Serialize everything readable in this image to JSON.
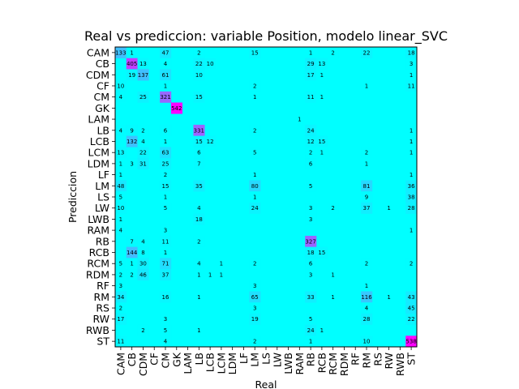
{
  "chart_data": {
    "type": "heatmap",
    "title": "Real vs prediccion: variable Position, modelo linear_SVC",
    "xlabel": "Real",
    "ylabel": "Prediccion",
    "categories": [
      "CAM",
      "CB",
      "CDM",
      "CF",
      "CM",
      "GK",
      "LAM",
      "LB",
      "LCB",
      "LCM",
      "LDM",
      "LF",
      "LM",
      "LS",
      "LW",
      "LWB",
      "RAM",
      "RB",
      "RCB",
      "RCM",
      "RDM",
      "RF",
      "RM",
      "RS",
      "RW",
      "RWB",
      "ST"
    ],
    "colormap": {
      "low": "#00ffff",
      "high": "#ff00ff"
    },
    "vmax": 542,
    "cells": [
      [
        0,
        0,
        133
      ],
      [
        0,
        1,
        1
      ],
      [
        0,
        4,
        47
      ],
      [
        0,
        7,
        2
      ],
      [
        0,
        12,
        15
      ],
      [
        0,
        17,
        1
      ],
      [
        0,
        19,
        2
      ],
      [
        0,
        22,
        22
      ],
      [
        0,
        26,
        18
      ],
      [
        1,
        1,
        405
      ],
      [
        1,
        2,
        13
      ],
      [
        1,
        4,
        4
      ],
      [
        1,
        7,
        22
      ],
      [
        1,
        8,
        10
      ],
      [
        1,
        17,
        29
      ],
      [
        1,
        18,
        13
      ],
      [
        1,
        26,
        3
      ],
      [
        2,
        1,
        19
      ],
      [
        2,
        2,
        137
      ],
      [
        2,
        4,
        61
      ],
      [
        2,
        7,
        10
      ],
      [
        2,
        17,
        17
      ],
      [
        2,
        18,
        1
      ],
      [
        2,
        26,
        1
      ],
      [
        3,
        0,
        10
      ],
      [
        3,
        4,
        1
      ],
      [
        3,
        12,
        2
      ],
      [
        3,
        22,
        1
      ],
      [
        3,
        26,
        11
      ],
      [
        4,
        0,
        4
      ],
      [
        4,
        2,
        25
      ],
      [
        4,
        4,
        321
      ],
      [
        4,
        7,
        15
      ],
      [
        4,
        12,
        1
      ],
      [
        4,
        17,
        11
      ],
      [
        4,
        18,
        1
      ],
      [
        5,
        5,
        542
      ],
      [
        6,
        16,
        1
      ],
      [
        7,
        0,
        4
      ],
      [
        7,
        1,
        9
      ],
      [
        7,
        2,
        2
      ],
      [
        7,
        4,
        6
      ],
      [
        7,
        7,
        331
      ],
      [
        7,
        12,
        2
      ],
      [
        7,
        17,
        24
      ],
      [
        7,
        26,
        1
      ],
      [
        8,
        1,
        132
      ],
      [
        8,
        2,
        4
      ],
      [
        8,
        4,
        1
      ],
      [
        8,
        7,
        15
      ],
      [
        8,
        8,
        12
      ],
      [
        8,
        17,
        12
      ],
      [
        8,
        18,
        15
      ],
      [
        8,
        26,
        1
      ],
      [
        9,
        0,
        13
      ],
      [
        9,
        2,
        22
      ],
      [
        9,
        4,
        63
      ],
      [
        9,
        7,
        6
      ],
      [
        9,
        12,
        5
      ],
      [
        9,
        17,
        2
      ],
      [
        9,
        18,
        1
      ],
      [
        9,
        22,
        2
      ],
      [
        9,
        26,
        1
      ],
      [
        10,
        0,
        1
      ],
      [
        10,
        1,
        3
      ],
      [
        10,
        2,
        31
      ],
      [
        10,
        4,
        25
      ],
      [
        10,
        7,
        7
      ],
      [
        10,
        17,
        6
      ],
      [
        10,
        22,
        1
      ],
      [
        11,
        0,
        1
      ],
      [
        11,
        4,
        2
      ],
      [
        11,
        12,
        1
      ],
      [
        11,
        26,
        1
      ],
      [
        12,
        0,
        48
      ],
      [
        12,
        4,
        15
      ],
      [
        12,
        7,
        35
      ],
      [
        12,
        12,
        80
      ],
      [
        12,
        17,
        5
      ],
      [
        12,
        22,
        81
      ],
      [
        12,
        26,
        36
      ],
      [
        13,
        0,
        5
      ],
      [
        13,
        4,
        1
      ],
      [
        13,
        12,
        1
      ],
      [
        13,
        22,
        9
      ],
      [
        13,
        26,
        38
      ],
      [
        14,
        0,
        10
      ],
      [
        14,
        4,
        5
      ],
      [
        14,
        7,
        4
      ],
      [
        14,
        12,
        24
      ],
      [
        14,
        17,
        3
      ],
      [
        14,
        19,
        2
      ],
      [
        14,
        22,
        37
      ],
      [
        14,
        24,
        1
      ],
      [
        14,
        26,
        28
      ],
      [
        15,
        0,
        1
      ],
      [
        15,
        7,
        18
      ],
      [
        15,
        17,
        3
      ],
      [
        16,
        0,
        4
      ],
      [
        16,
        4,
        3
      ],
      [
        16,
        26,
        1
      ],
      [
        17,
        1,
        7
      ],
      [
        17,
        2,
        4
      ],
      [
        17,
        4,
        11
      ],
      [
        17,
        7,
        2
      ],
      [
        17,
        17,
        327
      ],
      [
        18,
        1,
        144
      ],
      [
        18,
        2,
        8
      ],
      [
        18,
        4,
        1
      ],
      [
        18,
        17,
        18
      ],
      [
        18,
        18,
        15
      ],
      [
        19,
        0,
        5
      ],
      [
        19,
        1,
        1
      ],
      [
        19,
        2,
        30
      ],
      [
        19,
        4,
        71
      ],
      [
        19,
        7,
        4
      ],
      [
        19,
        9,
        1
      ],
      [
        19,
        12,
        2
      ],
      [
        19,
        17,
        6
      ],
      [
        19,
        22,
        2
      ],
      [
        19,
        26,
        2
      ],
      [
        20,
        0,
        2
      ],
      [
        20,
        1,
        2
      ],
      [
        20,
        2,
        46
      ],
      [
        20,
        4,
        37
      ],
      [
        20,
        7,
        1
      ],
      [
        20,
        8,
        1
      ],
      [
        20,
        9,
        1
      ],
      [
        20,
        17,
        3
      ],
      [
        20,
        19,
        1
      ],
      [
        21,
        0,
        3
      ],
      [
        21,
        12,
        3
      ],
      [
        21,
        22,
        1
      ],
      [
        22,
        0,
        34
      ],
      [
        22,
        4,
        16
      ],
      [
        22,
        7,
        1
      ],
      [
        22,
        12,
        65
      ],
      [
        22,
        17,
        33
      ],
      [
        22,
        19,
        1
      ],
      [
        22,
        22,
        116
      ],
      [
        22,
        24,
        1
      ],
      [
        22,
        26,
        43
      ],
      [
        23,
        0,
        2
      ],
      [
        23,
        12,
        3
      ],
      [
        23,
        22,
        4
      ],
      [
        23,
        26,
        45
      ],
      [
        24,
        0,
        17
      ],
      [
        24,
        4,
        3
      ],
      [
        24,
        12,
        19
      ],
      [
        24,
        17,
        5
      ],
      [
        24,
        22,
        28
      ],
      [
        24,
        26,
        22
      ],
      [
        25,
        2,
        2
      ],
      [
        25,
        4,
        5
      ],
      [
        25,
        7,
        1
      ],
      [
        25,
        17,
        24
      ],
      [
        25,
        18,
        1
      ],
      [
        26,
        0,
        11
      ],
      [
        26,
        4,
        4
      ],
      [
        26,
        12,
        2
      ],
      [
        26,
        17,
        1
      ],
      [
        26,
        22,
        10
      ],
      [
        26,
        26,
        538
      ]
    ]
  }
}
